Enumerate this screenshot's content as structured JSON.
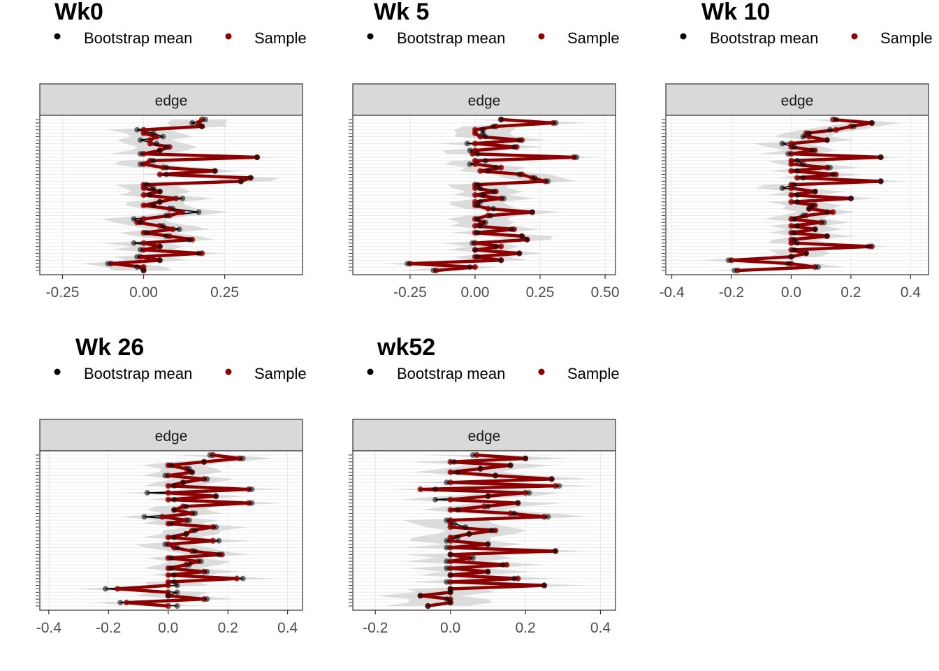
{
  "legend": {
    "bootstrap_label": "Bootstrap mean",
    "sample_label": "Sample",
    "bootstrap_color": "#000000",
    "sample_color": "#8B0000"
  },
  "strip_label": "edge",
  "colors": {
    "ci_band": "#cfcfcf",
    "strip_bg": "#d9d9d9",
    "grid": "#ebebeb",
    "axis_text": "#4d4d4d",
    "sample": "#8B0000",
    "bootstrap": "#000000"
  },
  "chart_data": [
    {
      "type": "line",
      "title": "Wk0",
      "xlim": [
        -0.32,
        0.49
      ],
      "xticks": [
        -0.25,
        0.0,
        0.25
      ],
      "xtick_labels": [
        "-0.25",
        "0.00",
        "0.25"
      ],
      "n_edges": 45,
      "sample": [
        0.18,
        0.17,
        0.18,
        0.0,
        0.0,
        0.04,
        0.02,
        0.02,
        0.08,
        0.05,
        0.0,
        0.35,
        0.02,
        0.0,
        0.06,
        0.22,
        0.05,
        0.33,
        0.3,
        0.0,
        0.0,
        0.05,
        0.0,
        0.1,
        0.05,
        0.0,
        0.08,
        0.12,
        0.08,
        0.0,
        -0.02,
        0.05,
        0.09,
        0.0,
        0.08,
        0.15,
        0.0,
        0.05,
        0.0,
        0.18,
        -0.01,
        0.05,
        -0.1,
        0.0,
        0.0
      ],
      "bootstrap_mean": [
        0.19,
        0.15,
        0.18,
        -0.02,
        0.03,
        0.06,
        -0.01,
        0.04,
        0.07,
        0.05,
        -0.01,
        0.35,
        0.03,
        -0.01,
        0.07,
        0.22,
        0.07,
        0.33,
        0.3,
        0.01,
        0.03,
        0.05,
        0.02,
        0.12,
        0.05,
        0.03,
        0.09,
        0.17,
        0.07,
        -0.03,
        -0.01,
        0.06,
        0.11,
        0.01,
        0.07,
        0.14,
        -0.03,
        0.05,
        -0.01,
        0.17,
        -0.02,
        0.05,
        -0.11,
        -0.02,
        0.0
      ],
      "ci_halfwidth": 0.1
    },
    {
      "type": "line",
      "title": "Wk 5",
      "xlim": [
        -0.47,
        0.54
      ],
      "xticks": [
        -0.25,
        0.0,
        0.25,
        0.5
      ],
      "xtick_labels": [
        "-0.25",
        "0.00",
        "0.25",
        "0.50"
      ],
      "n_edges": 45,
      "sample": [
        0.1,
        0.3,
        0.08,
        0.0,
        0.0,
        0.02,
        0.18,
        0.0,
        0.16,
        0.0,
        -0.01,
        0.38,
        0.0,
        0.0,
        0.1,
        0.02,
        0.18,
        0.22,
        0.27,
        0.0,
        0.0,
        0.08,
        0.0,
        0.1,
        0.0,
        0.0,
        0.05,
        0.22,
        0.05,
        0.0,
        0.03,
        0.0,
        0.15,
        0.0,
        0.18,
        0.2,
        0.0,
        0.1,
        0.0,
        0.17,
        0.0,
        0.1,
        -0.25,
        0.0,
        -0.15
      ],
      "bootstrap_mean": [
        0.1,
        0.31,
        0.07,
        0.03,
        0.03,
        0.04,
        0.17,
        -0.03,
        0.15,
        -0.02,
        0.01,
        0.39,
        0.04,
        -0.02,
        0.08,
        0.05,
        0.17,
        0.23,
        0.28,
        0.01,
        0.02,
        0.07,
        0.03,
        0.11,
        0.02,
        0.01,
        0.07,
        0.22,
        0.06,
        0.01,
        0.04,
        0.02,
        0.14,
        0.01,
        0.18,
        0.2,
        -0.01,
        0.08,
        0.0,
        0.17,
        0.01,
        0.1,
        -0.26,
        -0.02,
        -0.16
      ],
      "ci_halfwidth": 0.12
    },
    {
      "type": "line",
      "title": "Wk 10",
      "xlim": [
        -0.42,
        0.46
      ],
      "xticks": [
        -0.4,
        -0.2,
        0.0,
        0.2,
        0.4
      ],
      "xtick_labels": [
        "-0.4",
        "-0.2",
        "0.0",
        "0.2",
        "0.4"
      ],
      "n_edges": 45,
      "sample": [
        0.14,
        0.27,
        0.2,
        0.15,
        0.05,
        0.06,
        0.12,
        0.0,
        0.0,
        0.08,
        0.0,
        0.3,
        0.0,
        0.0,
        0.12,
        0.0,
        0.15,
        0.02,
        0.3,
        0.0,
        0.0,
        0.08,
        0.0,
        0.2,
        0.0,
        0.08,
        0.06,
        0.14,
        0.05,
        0.0,
        0.1,
        0.0,
        0.08,
        0.0,
        0.12,
        0.0,
        0.0,
        0.27,
        0.0,
        0.05,
        0.0,
        -0.2,
        0.0,
        0.08,
        -0.18
      ],
      "bootstrap_mean": [
        0.15,
        0.27,
        0.21,
        0.13,
        0.06,
        0.04,
        0.12,
        -0.03,
        0.01,
        0.07,
        -0.01,
        0.3,
        0.02,
        0.04,
        0.13,
        0.02,
        0.14,
        0.04,
        0.3,
        0.01,
        -0.03,
        0.08,
        0.02,
        0.2,
        0.02,
        0.07,
        0.06,
        0.12,
        0.04,
        0.01,
        0.11,
        0.02,
        0.08,
        0.01,
        0.12,
        0.01,
        0.02,
        0.26,
        0.01,
        0.05,
        0.0,
        -0.21,
        -0.01,
        0.09,
        -0.19
      ],
      "ci_halfwidth": 0.1
    },
    {
      "type": "line",
      "title": "Wk 26",
      "xlim": [
        -0.43,
        0.45
      ],
      "xticks": [
        -0.4,
        -0.2,
        0.0,
        0.2,
        0.4
      ],
      "xtick_labels": [
        "-0.4",
        "-0.2",
        "0.0",
        "0.2",
        "0.4"
      ],
      "n_edges": 45,
      "sample": [
        0.15,
        0.24,
        0.12,
        0.0,
        0.06,
        0.08,
        0.0,
        0.12,
        0.05,
        0.0,
        0.27,
        0.0,
        0.16,
        0.0,
        0.27,
        0.05,
        0.02,
        0.08,
        -0.02,
        0.06,
        0.0,
        0.15,
        0.08,
        0.06,
        0.0,
        0.15,
        0.0,
        0.02,
        0.08,
        0.18,
        0.0,
        0.1,
        0.06,
        0.0,
        0.12,
        0.0,
        0.23,
        0.0,
        0.0,
        -0.17,
        0.0,
        0.0,
        0.12,
        -0.14,
        0.0
      ],
      "bootstrap_mean": [
        0.14,
        0.25,
        0.12,
        0.01,
        0.07,
        0.08,
        -0.01,
        0.13,
        0.05,
        0.02,
        0.28,
        -0.07,
        0.16,
        0.02,
        0.28,
        0.06,
        0.02,
        0.09,
        -0.08,
        0.07,
        0.01,
        0.16,
        0.09,
        0.06,
        0.02,
        0.17,
        -0.01,
        0.03,
        0.09,
        0.17,
        0.01,
        0.11,
        0.07,
        0.01,
        0.13,
        0.02,
        0.25,
        0.02,
        0.03,
        -0.21,
        0.03,
        0.0,
        0.13,
        -0.16,
        0.03
      ],
      "ci_halfwidth": 0.11
    },
    {
      "type": "line",
      "title": "wk52",
      "xlim": [
        -0.26,
        0.44
      ],
      "xticks": [
        -0.2,
        0.0,
        0.2,
        0.4
      ],
      "xtick_labels": [
        "-0.2",
        "0.0",
        "0.2",
        "0.4"
      ],
      "n_edges": 45,
      "sample": [
        0.07,
        0.2,
        0.0,
        0.16,
        0.08,
        0.0,
        0.12,
        0.27,
        0.0,
        0.28,
        -0.08,
        0.2,
        0.1,
        0.0,
        0.18,
        0.09,
        0.0,
        0.16,
        0.25,
        0.0,
        0.0,
        0.0,
        0.12,
        0.05,
        0.0,
        0.0,
        0.1,
        0.0,
        0.28,
        0.0,
        0.05,
        0.0,
        0.15,
        0.0,
        0.1,
        0.0,
        0.18,
        0.0,
        0.25,
        0.0,
        0.0,
        -0.08,
        0.0,
        0.0,
        -0.06
      ],
      "bootstrap_mean": [
        0.06,
        0.2,
        0.01,
        0.16,
        0.08,
        0.02,
        0.12,
        0.27,
        -0.01,
        0.29,
        -0.04,
        0.21,
        0.1,
        -0.04,
        0.18,
        0.1,
        0.02,
        0.17,
        0.26,
        -0.01,
        0.01,
        0.04,
        0.11,
        0.05,
        0.02,
        -0.01,
        0.1,
        -0.01,
        0.28,
        0.0,
        0.06,
        -0.01,
        0.14,
        -0.01,
        0.1,
        0.0,
        0.17,
        -0.01,
        0.25,
        0.0,
        0.0,
        -0.08,
        -0.01,
        0.0,
        -0.06
      ],
      "ci_halfwidth": 0.12
    }
  ]
}
